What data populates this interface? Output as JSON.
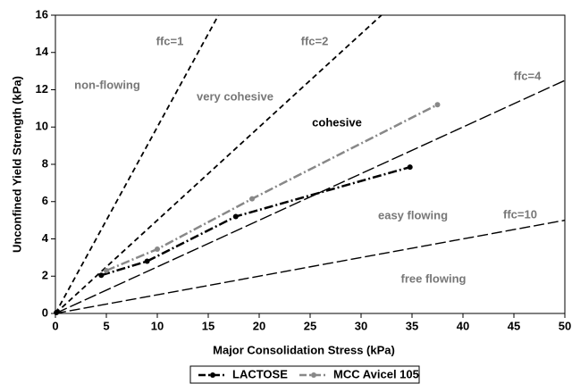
{
  "chart_data": {
    "type": "line",
    "x_label": "Major Consolidation Stress (kPa)",
    "y_label": "Unconfined Yield Strength (kPa)",
    "xlim": [
      0,
      50
    ],
    "xticks": [
      0,
      5,
      10,
      15,
      20,
      25,
      30,
      35,
      40,
      45,
      50
    ],
    "ylim": [
      0,
      16
    ],
    "yticks": [
      0,
      2,
      4,
      6,
      8,
      10,
      12,
      14,
      16
    ],
    "series": [
      {
        "name": "LACTOSE",
        "color": "#000000",
        "x": [
          4.5,
          9,
          17.7,
          34.8
        ],
        "values": [
          2.05,
          2.8,
          5.2,
          7.85
        ]
      },
      {
        "name": "MCC Avicel 105",
        "color": "#888888",
        "x": [
          5,
          10,
          19.3,
          37.5
        ],
        "values": [
          2.3,
          3.45,
          6.15,
          11.2
        ]
      }
    ],
    "reference_lines": [
      {
        "label": "ffc=1",
        "x": [
          0,
          16
        ],
        "values": [
          0,
          16
        ]
      },
      {
        "label": "ffc=2",
        "x": [
          0,
          32
        ],
        "values": [
          0,
          16
        ]
      },
      {
        "label": "ffc=4",
        "x": [
          0,
          50
        ],
        "values": [
          0,
          12.5
        ]
      },
      {
        "label": "ffc=10",
        "x": [
          0,
          50
        ],
        "values": [
          0,
          5
        ]
      }
    ],
    "annotations": [
      "non-flowing",
      "very cohesive",
      "cohesive",
      "easy flowing",
      "free flowing"
    ]
  }
}
